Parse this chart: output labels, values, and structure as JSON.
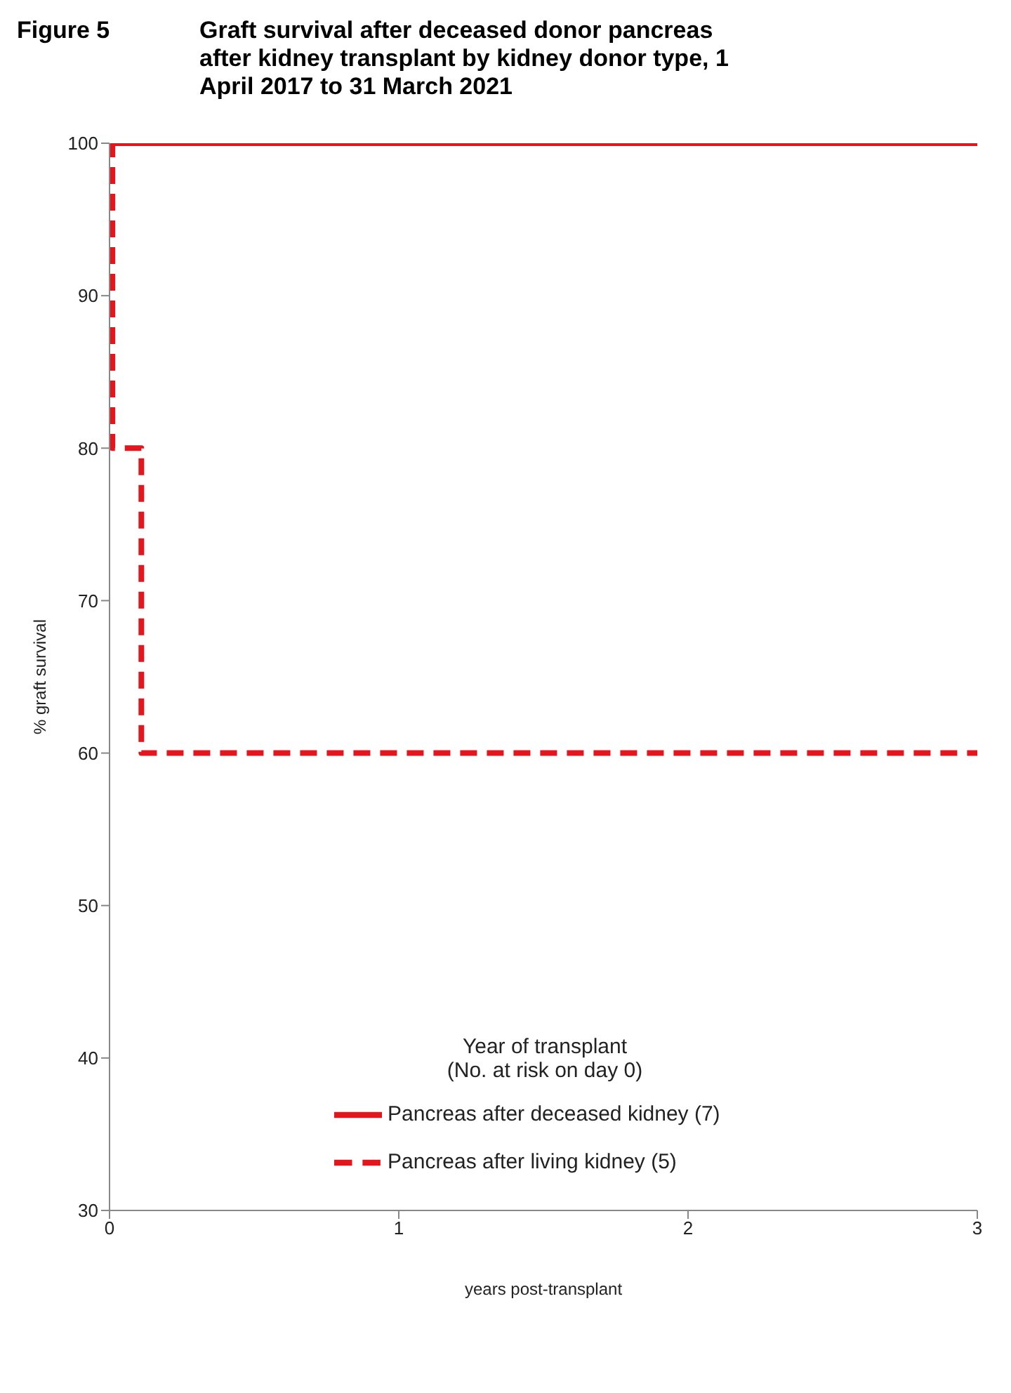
{
  "chart_data": {
    "type": "step",
    "title": "Figure 5",
    "subtitle": "Graft survival after deceased donor pancreas after kidney transplant by kidney donor type, 1 April 2017 to 31 March 2021",
    "xlabel": "years post-transplant",
    "ylabel": "% graft survival",
    "legend_title": "Year of transplant\n(No. at risk on day 0)",
    "legend": "bottom",
    "grid": false,
    "marker": "none",
    "xlim": [
      0,
      3
    ],
    "xticks": [
      0,
      1,
      2,
      3
    ],
    "ylim": [
      30,
      100
    ],
    "yticks": [
      30,
      40,
      50,
      60,
      70,
      80,
      90,
      100
    ],
    "series": [
      {
        "name": "Pancreas after deceased kidney (7)",
        "color": "#e3161e",
        "line_style": "solid",
        "x": [
          0,
          3
        ],
        "values": [
          100,
          100
        ]
      },
      {
        "name": "Pancreas after living kidney (5)",
        "color": "#e3161e",
        "line_style": "dashed",
        "x": [
          0,
          0.01,
          0.11,
          3
        ],
        "values": [
          100,
          80,
          60,
          60
        ]
      }
    ]
  }
}
